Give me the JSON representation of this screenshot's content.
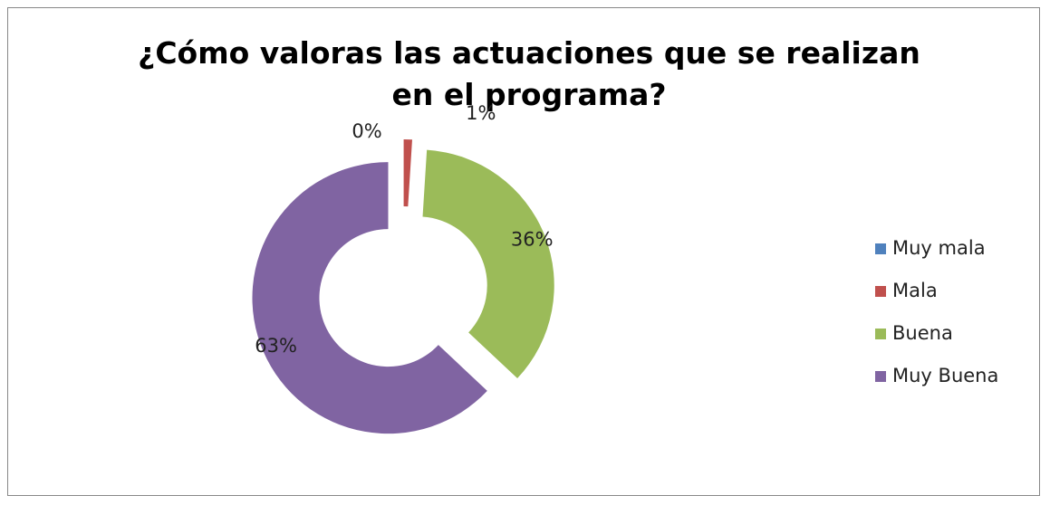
{
  "chart_data": {
    "type": "donut",
    "title": "¿Cómo valoras las actuaciones que se realizan en el programa?",
    "categories": [
      "Muy mala",
      "Mala",
      "Buena",
      "Muy Buena"
    ],
    "values": [
      0,
      1,
      36,
      63
    ],
    "value_labels": [
      "0%",
      "1%",
      "36%",
      "63%"
    ],
    "colors": [
      "#4f81bd",
      "#c0504d",
      "#9bbb59",
      "#8064a2"
    ],
    "legend": "right"
  }
}
